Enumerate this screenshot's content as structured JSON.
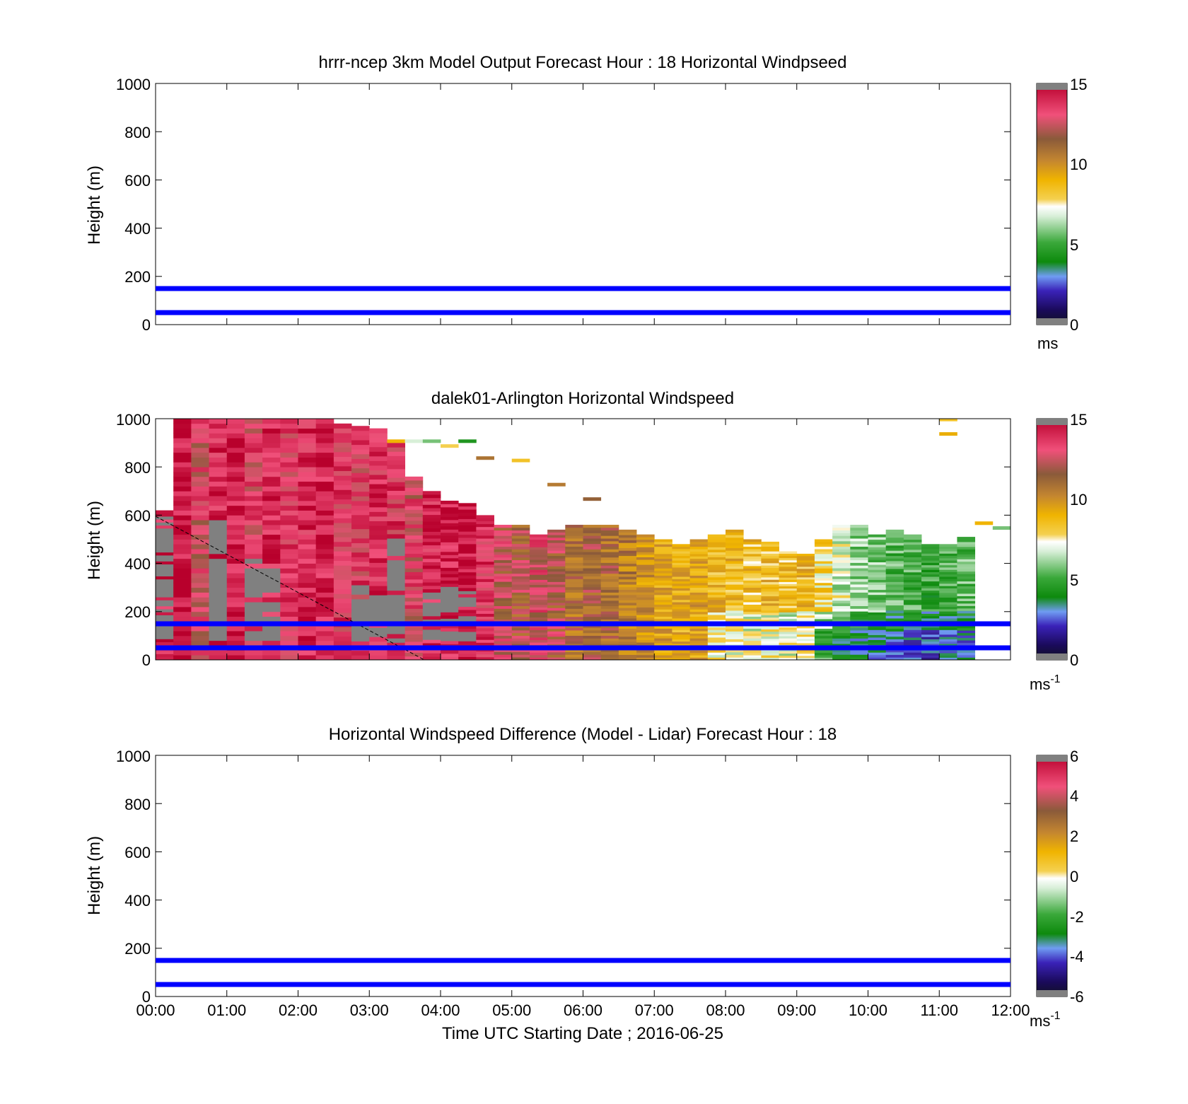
{
  "chart_data": [
    {
      "type": "heatmap",
      "title": "hrrr-ncep 3km Model Output   Forecast Hour : 18 Horizontal Windpseed",
      "ylabel": "Height (m)",
      "xlim": [
        "00:00",
        "12:00"
      ],
      "ylim": [
        0,
        1000
      ],
      "yticks": [
        "0",
        "200",
        "400",
        "600",
        "800",
        "1000"
      ],
      "reference_lines": [
        50,
        150
      ],
      "colorbar": {
        "ticks": [
          "0",
          "5",
          "10",
          "15"
        ],
        "range": [
          0,
          15
        ],
        "unit": "ms"
      },
      "grid": false,
      "data": "empty"
    },
    {
      "type": "heatmap",
      "title": "dalek01-Arlington  Horizontal Windspeed",
      "ylabel": "Height (m)",
      "xlim": [
        "00:00",
        "12:00"
      ],
      "ylim": [
        0,
        1000
      ],
      "yticks": [
        "0",
        "200",
        "400",
        "600",
        "800",
        "1000"
      ],
      "reference_lines": [
        50,
        150
      ],
      "colorbar": {
        "ticks": [
          "0",
          "5",
          "10",
          "15"
        ],
        "range": [
          0,
          15
        ],
        "unit": "ms",
        "unit_exp": "-1"
      },
      "grid": false,
      "columns": [
        {
          "t": "00:00",
          "top": 620,
          "v": 14.2
        },
        {
          "t": "00:15",
          "top": 1000,
          "v": 14.5
        },
        {
          "t": "00:30",
          "top": 1000,
          "v": 13.0
        },
        {
          "t": "00:45",
          "top": 1000,
          "v": 14.0
        },
        {
          "t": "01:00",
          "top": 1000,
          "v": 14.3
        },
        {
          "t": "01:15",
          "top": 1000,
          "v": 13.2
        },
        {
          "t": "01:30",
          "top": 1000,
          "v": 14.1
        },
        {
          "t": "01:45",
          "top": 1000,
          "v": 13.6
        },
        {
          "t": "02:00",
          "top": 1000,
          "v": 14.0
        },
        {
          "t": "02:15",
          "top": 1000,
          "v": 14.2
        },
        {
          "t": "02:30",
          "top": 980,
          "v": 13.5
        },
        {
          "t": "02:45",
          "top": 970,
          "v": 13.4
        },
        {
          "t": "03:00",
          "top": 960,
          "v": 13.8
        },
        {
          "t": "03:15",
          "top": 900,
          "v": 13.6
        },
        {
          "t": "03:30",
          "top": 760,
          "v": 13.0
        },
        {
          "t": "03:45",
          "top": 700,
          "v": 14.0
        },
        {
          "t": "04:00",
          "top": 660,
          "v": 14.2
        },
        {
          "t": "04:15",
          "top": 650,
          "v": 14.5
        },
        {
          "t": "04:30",
          "top": 600,
          "v": 13.7
        },
        {
          "t": "04:45",
          "top": 560,
          "v": 12.4
        },
        {
          "t": "05:00",
          "top": 560,
          "v": 11.9
        },
        {
          "t": "05:15",
          "top": 520,
          "v": 12.8
        },
        {
          "t": "05:30",
          "top": 540,
          "v": 12.2
        },
        {
          "t": "05:45",
          "top": 560,
          "v": 11.2
        },
        {
          "t": "06:00",
          "top": 560,
          "v": 11.5
        },
        {
          "t": "06:15",
          "top": 560,
          "v": 11.3
        },
        {
          "t": "06:30",
          "top": 540,
          "v": 10.7
        },
        {
          "t": "06:45",
          "top": 520,
          "v": 10.1
        },
        {
          "t": "07:00",
          "top": 500,
          "v": 9.6
        },
        {
          "t": "07:15",
          "top": 480,
          "v": 9.3
        },
        {
          "t": "07:30",
          "top": 500,
          "v": 9.5
        },
        {
          "t": "07:45",
          "top": 520,
          "v": 9.1
        },
        {
          "t": "08:00",
          "top": 540,
          "v": 9.0
        },
        {
          "t": "08:15",
          "top": 500,
          "v": 8.8
        },
        {
          "t": "08:30",
          "top": 490,
          "v": 8.9
        },
        {
          "t": "08:45",
          "top": 450,
          "v": 8.7
        },
        {
          "t": "09:00",
          "top": 440,
          "v": 9.0
        },
        {
          "t": "09:15",
          "top": 500,
          "v": 8.0
        },
        {
          "t": "09:30",
          "top": 560,
          "v": 7.0
        },
        {
          "t": "09:45",
          "top": 560,
          "v": 6.2
        },
        {
          "t": "10:00",
          "top": 520,
          "v": 6.0
        },
        {
          "t": "10:15",
          "top": 540,
          "v": 5.5
        },
        {
          "t": "10:30",
          "top": 520,
          "v": 5.3
        },
        {
          "t": "10:45",
          "top": 480,
          "v": 5.0
        },
        {
          "t": "11:00",
          "top": 480,
          "v": 5.4
        },
        {
          "t": "11:15",
          "top": 510,
          "v": 5.6
        }
      ],
      "no_data_color": "#808080"
    },
    {
      "type": "heatmap",
      "title": "Horizontal Windspeed Difference (Model - Lidar) Forecast Hour : 18",
      "xlabel": "Time UTC  Starting Date ; 2016-06-25",
      "ylabel": "Height (m)",
      "xticks": [
        "00:00",
        "01:00",
        "02:00",
        "03:00",
        "04:00",
        "05:00",
        "06:00",
        "07:00",
        "08:00",
        "09:00",
        "10:00",
        "11:00",
        "12:00"
      ],
      "ylim": [
        0,
        1000
      ],
      "yticks": [
        "0",
        "200",
        "400",
        "600",
        "800",
        "1000"
      ],
      "reference_lines": [
        50,
        150
      ],
      "colorbar": {
        "ticks": [
          "-6",
          "-4",
          "-2",
          "0",
          "2",
          "4",
          "6"
        ],
        "range": [
          -6,
          6
        ],
        "unit": "ms",
        "unit_exp": "-1"
      },
      "grid": false,
      "data": "empty"
    }
  ],
  "colors": {
    "reference_line": "#0000ff",
    "colormap": [
      "#808080",
      "#000030",
      "#3a0ca8",
      "#6b8ef0",
      "#009a00",
      "#e8f2e8",
      "#f0c000",
      "#a06030",
      "#f04070",
      "#c00030",
      "#808080"
    ]
  }
}
